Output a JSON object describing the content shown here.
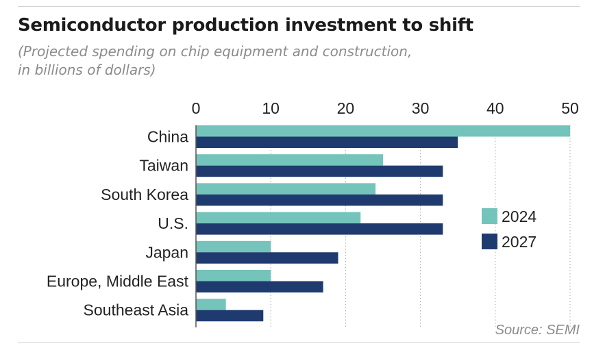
{
  "header": {
    "title": "Semiconductor production investment to shift",
    "subtitle_lines": [
      "(Projected spending on chip equipment and construction,",
      "in billions of dollars)"
    ]
  },
  "chart_data": {
    "type": "bar",
    "orientation": "horizontal",
    "title": "Semiconductor production investment to shift",
    "subtitle": "(Projected spending on chip equipment and construction, in billions of dollars)",
    "categories": [
      "China",
      "Taiwan",
      "South Korea",
      "U.S.",
      "Japan",
      "Europe, Middle East",
      "Southeast Asia"
    ],
    "series": [
      {
        "name": "2024",
        "color": "#74c4bb",
        "values": [
          50,
          25,
          24,
          22,
          10,
          10,
          4
        ]
      },
      {
        "name": "2027",
        "color": "#1f3a6e",
        "values": [
          35,
          33,
          33,
          33,
          19,
          17,
          9
        ]
      }
    ],
    "xlim": [
      0,
      50
    ],
    "xticks": [
      0,
      10,
      20,
      30,
      40,
      50
    ],
    "xlabel": "",
    "ylabel": "",
    "grid": "vertical dotted",
    "legend_position": "right",
    "source": "Source: SEMI"
  }
}
